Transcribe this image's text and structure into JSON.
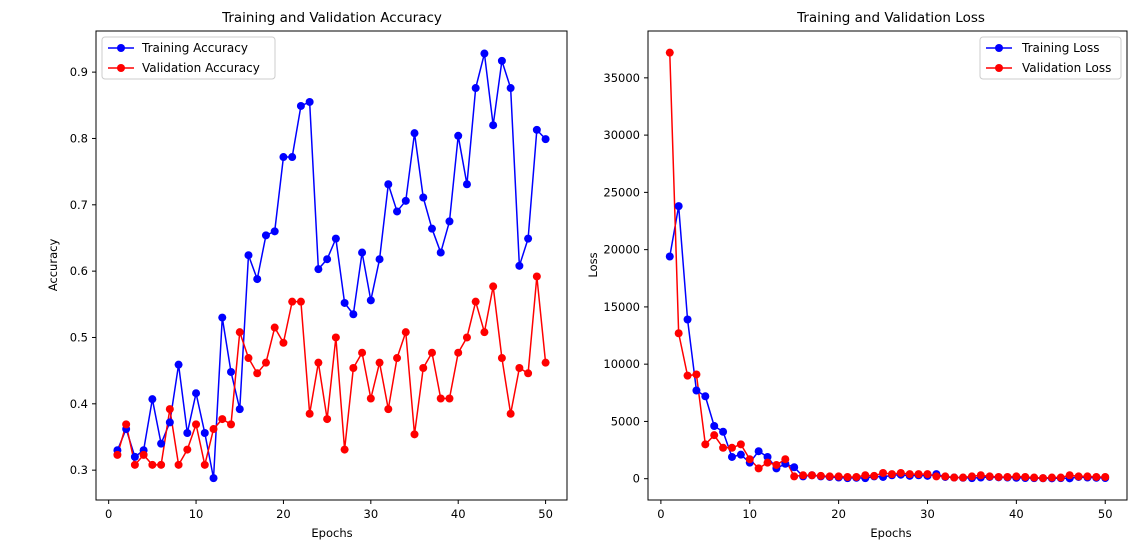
{
  "chart_data": [
    {
      "type": "line",
      "title": "Training and Validation Accuracy",
      "xlabel": "Epochs",
      "ylabel": "Accuracy",
      "xlim": [
        -1.45,
        52.45
      ],
      "ylim": [
        0.255,
        0.962
      ],
      "xticks": [
        0,
        10,
        20,
        30,
        40,
        50
      ],
      "yticks": [
        0.3,
        0.4,
        0.5,
        0.6,
        0.7,
        0.8,
        0.9
      ],
      "legend": "upper-left",
      "grid": false,
      "x": [
        1,
        2,
        3,
        4,
        5,
        6,
        7,
        8,
        9,
        10,
        11,
        12,
        13,
        14,
        15,
        16,
        17,
        18,
        19,
        20,
        21,
        22,
        23,
        24,
        25,
        26,
        27,
        28,
        29,
        30,
        31,
        32,
        33,
        34,
        35,
        36,
        37,
        38,
        39,
        40,
        41,
        42,
        43,
        44,
        45,
        46,
        47,
        48,
        49,
        50
      ],
      "series": [
        {
          "name": "Training Accuracy",
          "color": "#0000ff",
          "values": [
            0.33,
            0.362,
            0.32,
            0.33,
            0.407,
            0.34,
            0.372,
            0.459,
            0.356,
            0.416,
            0.356,
            0.288,
            0.53,
            0.448,
            0.392,
            0.624,
            0.588,
            0.654,
            0.66,
            0.772,
            0.772,
            0.849,
            0.855,
            0.603,
            0.618,
            0.649,
            0.552,
            0.535,
            0.628,
            0.556,
            0.618,
            0.731,
            0.69,
            0.706,
            0.808,
            0.711,
            0.664,
            0.628,
            0.675,
            0.804,
            0.731,
            0.876,
            0.928,
            0.82,
            0.917,
            0.876,
            0.608,
            0.649,
            0.813,
            0.799
          ]
        },
        {
          "name": "Validation Accuracy",
          "color": "#ff0000",
          "values": [
            0.323,
            0.369,
            0.308,
            0.323,
            0.308,
            0.308,
            0.392,
            0.308,
            0.331,
            0.369,
            0.308,
            0.362,
            0.377,
            0.369,
            0.508,
            0.469,
            0.446,
            0.462,
            0.515,
            0.492,
            0.554,
            0.554,
            0.385,
            0.462,
            0.377,
            0.5,
            0.331,
            0.454,
            0.477,
            0.408,
            0.462,
            0.392,
            0.469,
            0.508,
            0.354,
            0.454,
            0.477,
            0.408,
            0.408,
            0.477,
            0.5,
            0.554,
            0.508,
            0.577,
            0.469,
            0.385,
            0.454,
            0.446,
            0.592,
            0.462
          ]
        }
      ]
    },
    {
      "type": "line",
      "title": "Training and Validation Loss",
      "xlabel": "Epochs",
      "ylabel": "Loss",
      "xlim": [
        -1.45,
        52.45
      ],
      "ylim": [
        -1860,
        39090
      ],
      "xticks": [
        0,
        10,
        20,
        30,
        40,
        50
      ],
      "yticks": [
        0,
        5000,
        10000,
        15000,
        20000,
        25000,
        30000,
        35000
      ],
      "legend": "upper-right",
      "grid": false,
      "x": [
        1,
        2,
        3,
        4,
        5,
        6,
        7,
        8,
        9,
        10,
        11,
        12,
        13,
        14,
        15,
        16,
        17,
        18,
        19,
        20,
        21,
        22,
        23,
        24,
        25,
        26,
        27,
        28,
        29,
        30,
        31,
        32,
        33,
        34,
        35,
        36,
        37,
        38,
        39,
        40,
        41,
        42,
        43,
        44,
        45,
        46,
        47,
        48,
        49,
        50
      ],
      "series": [
        {
          "name": "Training Loss",
          "color": "#0000ff",
          "values": [
            19400,
            23800,
            13900,
            7700,
            7200,
            4600,
            4100,
            1900,
            2100,
            1400,
            2400,
            1900,
            900,
            1300,
            1000,
            200,
            300,
            200,
            150,
            100,
            50,
            80,
            50,
            200,
            150,
            300,
            350,
            250,
            300,
            250,
            400,
            150,
            100,
            80,
            50,
            100,
            150,
            120,
            100,
            80,
            60,
            50,
            40,
            30,
            50,
            30,
            150,
            100,
            80,
            60
          ]
        },
        {
          "name": "Validation Loss",
          "color": "#ff0000",
          "values": [
            37200,
            12700,
            9000,
            9100,
            3000,
            3800,
            2700,
            2700,
            3000,
            1700,
            900,
            1400,
            1200,
            1700,
            200,
            300,
            300,
            250,
            200,
            200,
            150,
            150,
            300,
            250,
            500,
            400,
            500,
            400,
            400,
            400,
            200,
            200,
            100,
            100,
            200,
            300,
            200,
            150,
            150,
            200,
            150,
            100,
            50,
            100,
            100,
            300,
            200,
            200,
            150,
            150
          ]
        }
      ]
    }
  ]
}
